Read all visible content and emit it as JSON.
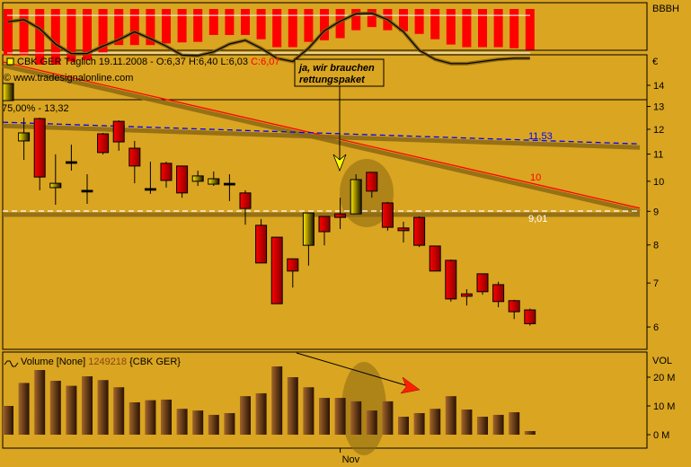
{
  "header": {
    "symbol_line": "CBK GER Täglich  19.11.2008 - O:6,37 H:6,40 L:6,03 ",
    "close_text": "C:6,07",
    "source": "© www.tradesignalonline.com",
    "range_text": "75,00% - 13,32"
  },
  "annotation": {
    "line1": "ja, wir brauchen",
    "line2": "rettungspaket"
  },
  "top_panel": {
    "label": "BBBH"
  },
  "volume_panel": {
    "legend_prefix": "Volume [None] ",
    "legend_value": "1249218",
    "legend_suffix": " {CBK GER}",
    "axis_label": "VOL"
  },
  "colors": {
    "background": "#DAA520",
    "down": "#FF0000",
    "up": "#FFE000",
    "trend_red": "#FF0000",
    "trend_blue": "#0000FF",
    "volume": "#5A2E08"
  },
  "chart_data": [
    {
      "type": "bar",
      "name_label": "BBBH",
      "values": [
        82,
        82,
        100,
        100,
        94,
        91,
        77,
        63,
        63,
        63,
        60,
        58,
        57,
        44,
        44,
        44,
        52,
        67,
        67,
        57,
        54,
        50,
        35,
        29,
        35,
        37,
        42,
        52,
        62,
        67,
        67,
        67,
        69,
        72
      ],
      "line": [
        19,
        15,
        32,
        61,
        79,
        79,
        65,
        53,
        38,
        51,
        65,
        82,
        83,
        76,
        61,
        54,
        69,
        88,
        94,
        69,
        36,
        18,
        4,
        3,
        15,
        38,
        73,
        90,
        98,
        98,
        94,
        90,
        88,
        88
      ],
      "reference_lines": [
        7,
        78
      ],
      "ylim": [
        0,
        100
      ]
    },
    {
      "type": "candlestick",
      "title": "CBK GER Täglich",
      "yscale": "log",
      "ylim": [
        5.7,
        15.5
      ],
      "ylabel": "€",
      "y_ticks": [
        "14",
        "13",
        "12",
        "11",
        "10",
        "9",
        "8",
        "7",
        "6"
      ],
      "x_ticks": [
        {
          "label": "Nov",
          "index": 21
        }
      ],
      "ohlc": [
        [
          13.27,
          14.09,
          13.27,
          14.09
        ],
        [
          11.52,
          12.5,
          10.78,
          11.85
        ],
        [
          12.46,
          12.5,
          9.69,
          10.15
        ],
        [
          9.78,
          10.99,
          9.21,
          9.93
        ],
        [
          10.68,
          11.37,
          10.38,
          10.68
        ],
        [
          9.66,
          10.25,
          9.24,
          9.66
        ],
        [
          11.81,
          11.85,
          10.99,
          11.06
        ],
        [
          12.34,
          12.38,
          11.13,
          11.48
        ],
        [
          11.23,
          11.52,
          9.93,
          10.55
        ],
        [
          9.72,
          10.71,
          9.57,
          9.72
        ],
        [
          10.65,
          10.71,
          9.78,
          10.03
        ],
        [
          10.55,
          10.55,
          9.44,
          9.6
        ],
        [
          10.0,
          10.38,
          9.84,
          10.19
        ],
        [
          9.9,
          10.35,
          9.84,
          10.09
        ],
        [
          9.9,
          10.25,
          9.33,
          9.9
        ],
        [
          9.6,
          9.69,
          8.59,
          9.09
        ],
        [
          8.57,
          8.76,
          7.51,
          7.51
        ],
        [
          8.22,
          8.22,
          6.51,
          6.51
        ],
        [
          7.62,
          7.62,
          6.89,
          7.3
        ],
        [
          7.99,
          8.95,
          7.44,
          8.95
        ],
        [
          8.84,
          8.84,
          7.99,
          8.38
        ],
        [
          8.92,
          9.44,
          8.46,
          8.81
        ],
        [
          8.92,
          10.25,
          8.92,
          10.06
        ],
        [
          10.32,
          10.32,
          9.44,
          9.66
        ],
        [
          9.27,
          9.3,
          8.41,
          8.51
        ],
        [
          8.49,
          8.68,
          8.07,
          8.41
        ],
        [
          8.81,
          8.84,
          7.94,
          7.99
        ],
        [
          7.97,
          7.97,
          7.3,
          7.3
        ],
        [
          7.58,
          7.6,
          6.56,
          6.62
        ],
        [
          6.72,
          6.85,
          6.47,
          6.68
        ],
        [
          7.23,
          7.23,
          6.72,
          6.79
        ],
        [
          6.96,
          7.03,
          6.43,
          6.56
        ],
        [
          6.58,
          6.6,
          6.17,
          6.33
        ],
        [
          6.37,
          6.4,
          6.03,
          6.07
        ]
      ],
      "trendlines": [
        {
          "color": "#FF0000",
          "from": 15.2,
          "to": 9.1,
          "label": "10"
        },
        {
          "color": "#0000FF",
          "from": 12.3,
          "to": 11.4,
          "label": "11,53",
          "dashed": true
        },
        {
          "color": "#FFFFFF",
          "from": 9.01,
          "to": 9.01,
          "label": "9,01",
          "dashed": true
        }
      ]
    },
    {
      "type": "bar",
      "title": "Volume",
      "ylabel": "VOL",
      "y_ticks": [
        "20 M",
        "10 M",
        "0 M"
      ],
      "ylim": [
        0,
        25
      ],
      "unit": "M",
      "values": [
        10,
        18,
        22.5,
        18.75,
        17,
        20.3,
        19,
        16.5,
        11.25,
        12,
        12.2,
        9,
        8.4,
        6.9,
        7.5,
        13.4,
        14.4,
        23.75,
        20,
        16.5,
        12.8,
        12.8,
        11.6,
        8.4,
        11.6,
        6.25,
        7.5,
        9,
        13.4,
        8.75,
        6.25,
        6.9,
        7.8,
        1.25
      ]
    }
  ]
}
